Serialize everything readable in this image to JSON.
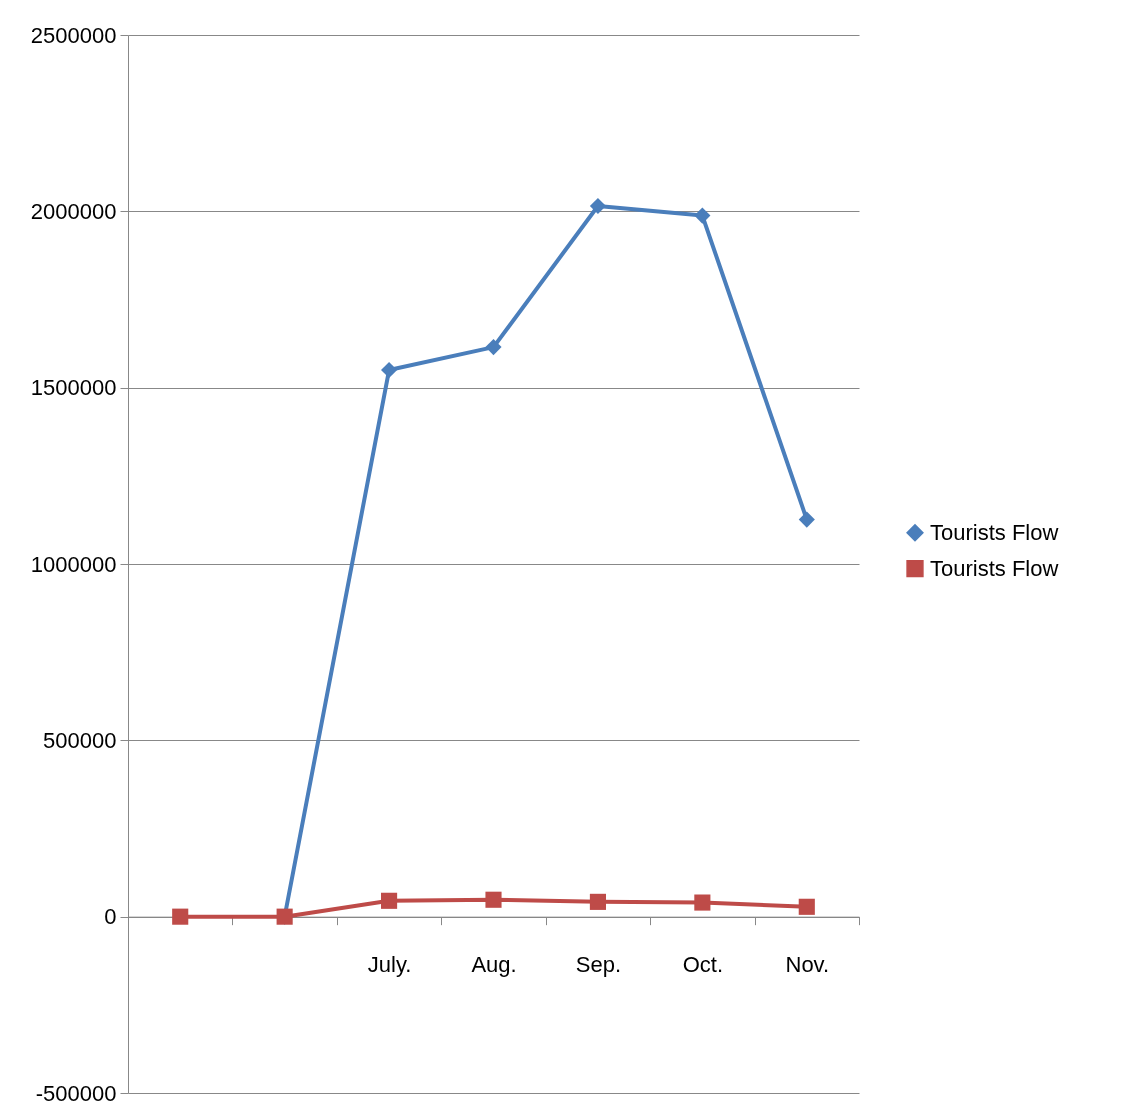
{
  "chart_data": {
    "type": "line",
    "categories": [
      null,
      null,
      "July.",
      "Aug.",
      "Sep.",
      "Oct.",
      "Nov."
    ],
    "series": [
      {
        "name": "Tourists Flow",
        "color": "#4a7ebb",
        "marker": "diamond",
        "values": [
          null,
          0,
          1550000,
          1615000,
          2015000,
          1988000,
          1126000
        ]
      },
      {
        "name": "Tourists Flow",
        "color": "#be4b48",
        "marker": "square",
        "values": [
          0,
          0,
          45000,
          48000,
          42000,
          40000,
          28000
        ]
      }
    ],
    "ylim": [
      -500000,
      2500000
    ],
    "yticks": [
      -500000,
      0,
      500000,
      1000000,
      1500000,
      2000000,
      2500000
    ],
    "grid": "y",
    "legend": "right"
  }
}
